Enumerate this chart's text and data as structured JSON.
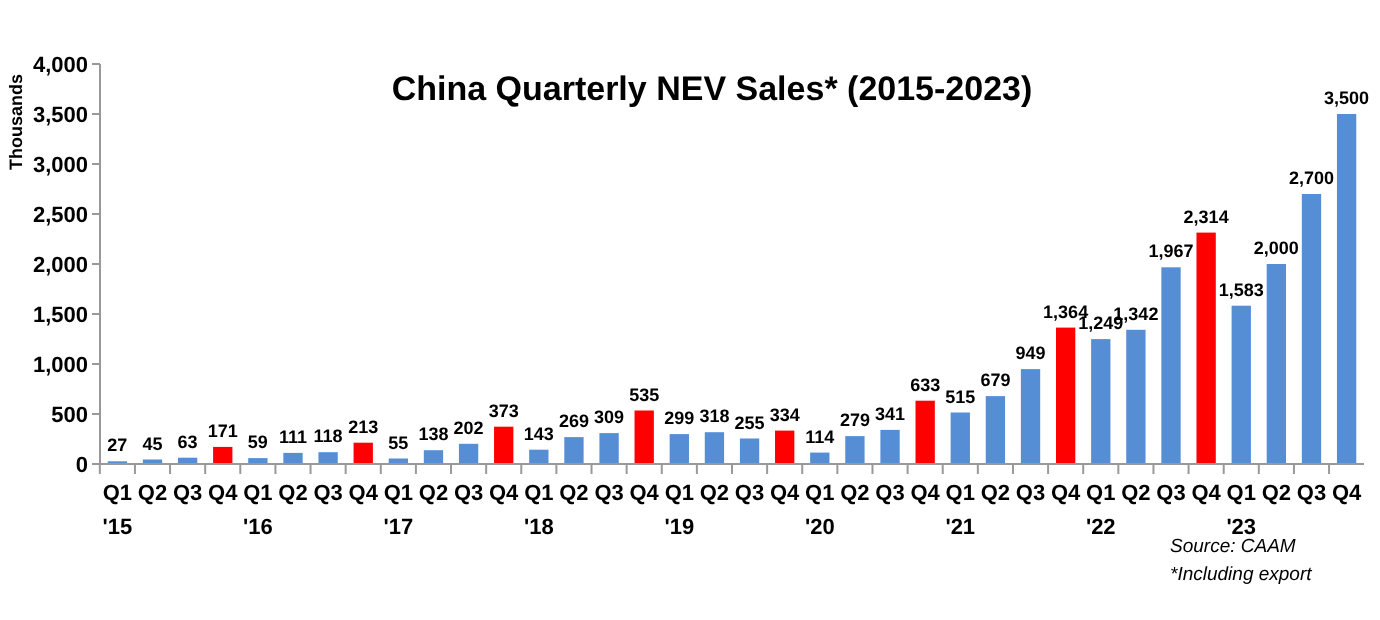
{
  "chart_data": {
    "type": "bar",
    "title": "China Quarterly NEV Sales* (2015-2023)",
    "ylabel": "Thousands",
    "categories": [
      "Q1\n'15",
      "Q2",
      "Q3",
      "Q4",
      "Q1\n'16",
      "Q2",
      "Q3",
      "Q4",
      "Q1\n'17",
      "Q2",
      "Q3",
      "Q4",
      "Q1\n'18",
      "Q2",
      "Q3",
      "Q4",
      "Q1\n'19",
      "Q2",
      "Q3",
      "Q4",
      "Q1\n'20",
      "Q2",
      "Q3",
      "Q4",
      "Q1\n'21",
      "Q2",
      "Q3",
      "Q4",
      "Q1\n'22",
      "Q2",
      "Q3",
      "Q4",
      "Q1\n'23",
      "Q2",
      "Q3",
      "Q4"
    ],
    "values": [
      27,
      45,
      63,
      171,
      59,
      111,
      118,
      213,
      55,
      138,
      202,
      373,
      143,
      269,
      309,
      535,
      299,
      318,
      255,
      334,
      114,
      279,
      341,
      633,
      515,
      679,
      949,
      1364,
      1249,
      1342,
      1967,
      2314,
      1583,
      2000,
      2700,
      3500
    ],
    "colors": [
      "#558ed5",
      "#558ed5",
      "#558ed5",
      "#ff0000",
      "#558ed5",
      "#558ed5",
      "#558ed5",
      "#ff0000",
      "#558ed5",
      "#558ed5",
      "#558ed5",
      "#ff0000",
      "#558ed5",
      "#558ed5",
      "#558ed5",
      "#ff0000",
      "#558ed5",
      "#558ed5",
      "#558ed5",
      "#ff0000",
      "#558ed5",
      "#558ed5",
      "#558ed5",
      "#ff0000",
      "#558ed5",
      "#558ed5",
      "#558ed5",
      "#ff0000",
      "#558ed5",
      "#558ed5",
      "#558ed5",
      "#ff0000",
      "#558ed5",
      "#558ed5",
      "#558ed5",
      "#558ed5"
    ],
    "ylim": [
      0,
      4000
    ],
    "yticks": [
      {
        "value": 0,
        "label": "0"
      },
      {
        "value": 500,
        "label": "500"
      },
      {
        "value": 1000,
        "label": "1,000"
      },
      {
        "value": 1500,
        "label": "1,500"
      },
      {
        "value": 2000,
        "label": "2,000"
      },
      {
        "value": 2500,
        "label": "2,500"
      },
      {
        "value": 3000,
        "label": "3,000"
      },
      {
        "value": 3500,
        "label": "3,500"
      },
      {
        "value": 4000,
        "label": "4,000"
      }
    ],
    "value_labels": [
      "27",
      "45",
      "63",
      "171",
      "59",
      "111",
      "118",
      "213",
      "55",
      "138",
      "202",
      "373",
      "143",
      "269",
      "309",
      "535",
      "299",
      "318",
      "255",
      "334",
      "114",
      "279",
      "341",
      "633",
      "515",
      "679",
      "949",
      "1,364",
      "1,249",
      "1,342",
      "1,967",
      "2,314",
      "1,583",
      "2,000",
      "2,700",
      "3,500"
    ],
    "grid": false,
    "annotations": [
      "Source: CAAM",
      "*Including export"
    ]
  }
}
